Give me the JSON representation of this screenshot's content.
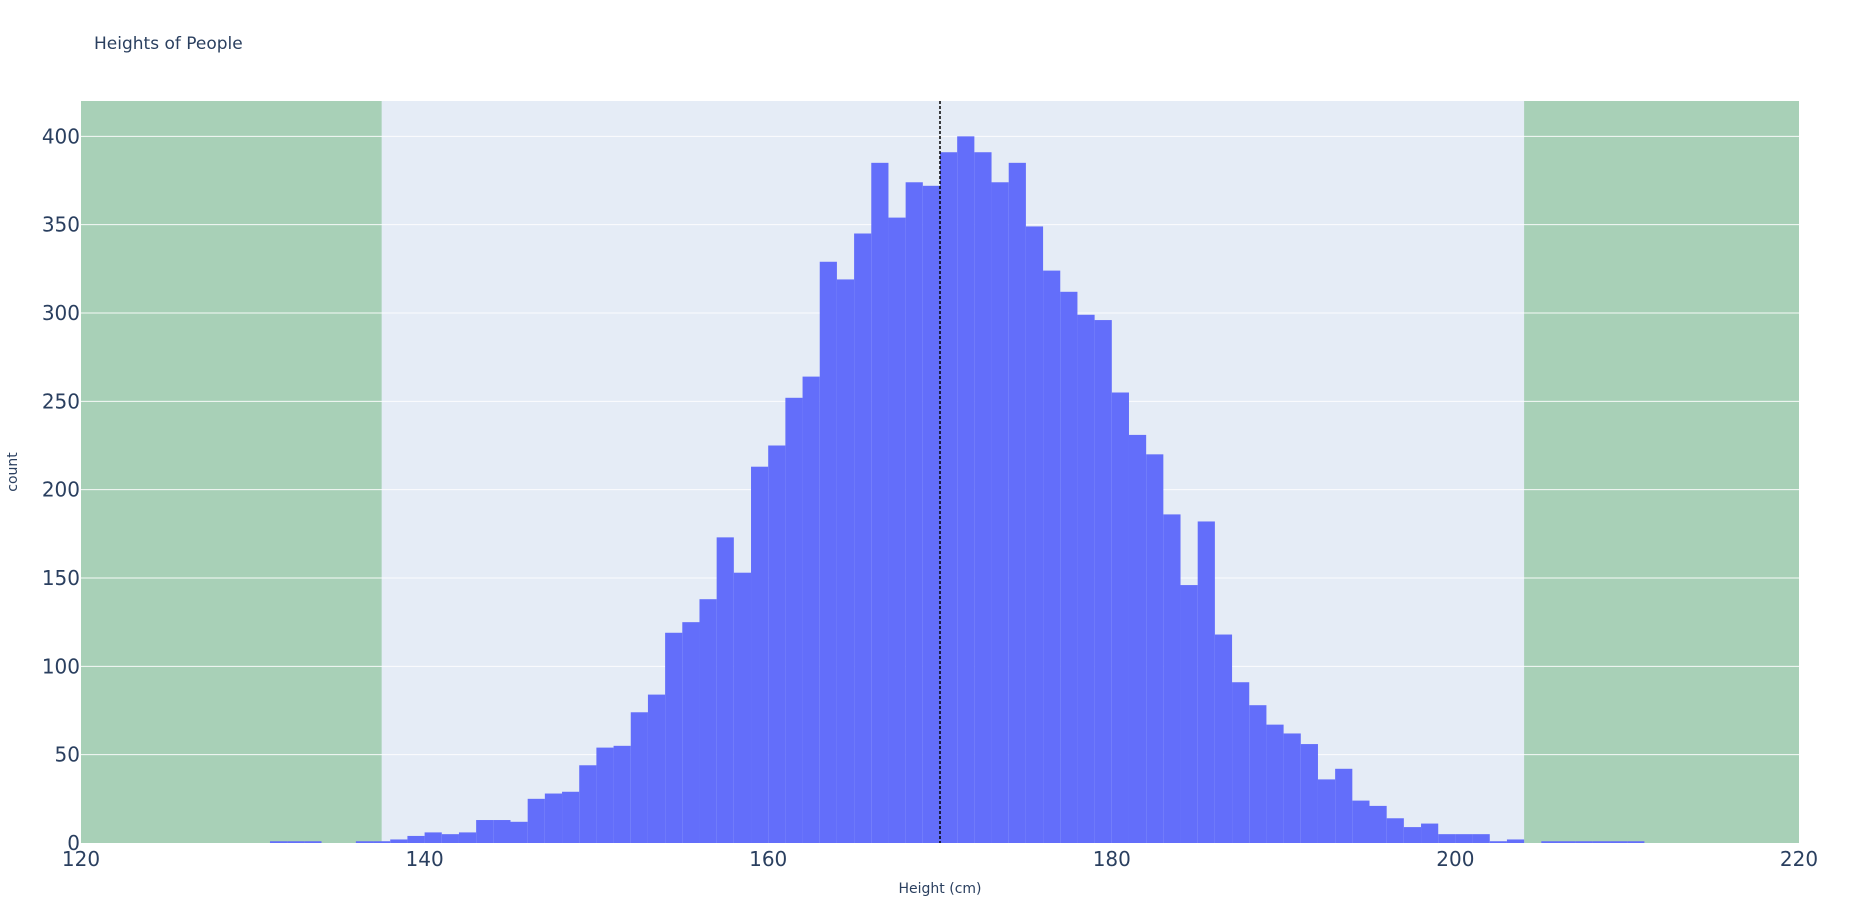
{
  "chart_data": {
    "type": "bar",
    "title": "Heights of People",
    "xlabel": "Height (cm)",
    "ylabel": "count",
    "xlim": [
      120,
      220
    ],
    "ylim": [
      0,
      420
    ],
    "x_ticks": [
      120,
      140,
      160,
      180,
      200,
      220
    ],
    "y_ticks": [
      0,
      50,
      100,
      150,
      200,
      250,
      300,
      350,
      400
    ],
    "grid": true,
    "bin_width": 1,
    "bins_start": [
      131,
      132,
      133,
      136,
      137,
      138,
      139,
      140,
      141,
      142,
      143,
      144,
      145,
      146,
      147,
      148,
      149,
      150,
      151,
      152,
      153,
      154,
      155,
      156,
      157,
      158,
      159,
      160,
      161,
      162,
      163,
      164,
      165,
      166,
      167,
      168,
      169,
      170,
      171,
      172,
      173,
      174,
      175,
      176,
      177,
      178,
      179,
      180,
      181,
      182,
      183,
      184,
      185,
      186,
      187,
      188,
      189,
      190,
      191,
      192,
      193,
      194,
      195,
      196,
      197,
      198,
      199,
      200,
      201,
      202,
      203,
      205,
      206,
      207,
      208,
      209,
      210
    ],
    "values": [
      1,
      1,
      1,
      1,
      1,
      2,
      4,
      6,
      5,
      6,
      13,
      13,
      12,
      25,
      28,
      29,
      44,
      54,
      55,
      74,
      84,
      119,
      125,
      138,
      173,
      153,
      213,
      225,
      252,
      264,
      329,
      319,
      345,
      385,
      354,
      374,
      372,
      391,
      400,
      391,
      374,
      385,
      349,
      324,
      312,
      299,
      296,
      255,
      231,
      220,
      186,
      146,
      182,
      118,
      91,
      78,
      67,
      62,
      56,
      36,
      42,
      24,
      21,
      14,
      9,
      11,
      5,
      5,
      5,
      1,
      2,
      1,
      1,
      1,
      1,
      1,
      1
    ],
    "bar_color": "#636efa",
    "mean_line": 170,
    "shaded_regions": [
      [
        120,
        137.5
      ],
      [
        204,
        220
      ]
    ],
    "shaded_color": "#8fc59c",
    "plot_bg": "#e5ecf6"
  }
}
